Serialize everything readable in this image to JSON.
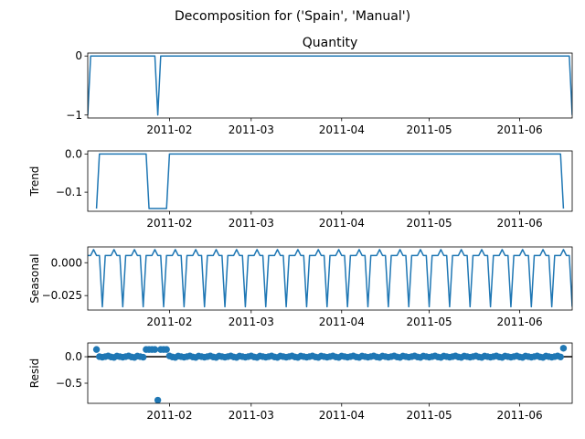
{
  "figure": {
    "suptitle": "Decomposition for ('Spain', 'Manual')"
  },
  "colors": {
    "line": "#1f77b4",
    "axis": "#000000",
    "background": "#ffffff",
    "zero_line": "#000000"
  },
  "chart_data": [
    {
      "type": "line",
      "panel": "observed",
      "title": "Quantity",
      "ylabel": "",
      "xlabel": "",
      "x_ticks": [
        "2011-02",
        "2011-03",
        "2011-04",
        "2011-05",
        "2011-06"
      ],
      "x_range": [
        "2011-01-04",
        "2011-06-19"
      ],
      "ylim": [
        -1.05,
        0.05
      ],
      "y_ticks": [
        0,
        -1
      ],
      "y_tick_labels": [
        "0",
        "−1"
      ],
      "x": [
        "2011-01-04",
        "2011-01-05",
        "2011-01-27",
        "2011-01-28",
        "2011-01-29",
        "2011-06-18",
        "2011-06-19"
      ],
      "values": [
        -1,
        0,
        0,
        -1,
        0,
        0,
        -1
      ]
    },
    {
      "type": "line",
      "panel": "trend",
      "title": "",
      "ylabel": "Trend",
      "xlabel": "",
      "x_ticks": [
        "2011-02",
        "2011-03",
        "2011-04",
        "2011-05",
        "2011-06"
      ],
      "x_range": [
        "2011-01-04",
        "2011-06-19"
      ],
      "ylim": [
        -0.15,
        0.008
      ],
      "y_ticks": [
        0.0,
        -0.1
      ],
      "y_tick_labels": [
        "0.0",
        "−0.1"
      ],
      "x": [
        "2011-01-07",
        "2011-01-08",
        "2011-01-24",
        "2011-01-25",
        "2011-01-31",
        "2011-02-01",
        "2011-06-15",
        "2011-06-16"
      ],
      "values": [
        -0.1429,
        0,
        0,
        -0.1429,
        -0.1429,
        0,
        0,
        -0.1429
      ]
    },
    {
      "type": "line",
      "panel": "seasonal",
      "title": "",
      "ylabel": "Seasonal",
      "xlabel": "",
      "x_ticks": [
        "2011-02",
        "2011-03",
        "2011-04",
        "2011-05",
        "2011-06"
      ],
      "x_range": [
        "2011-01-04",
        "2011-06-19"
      ],
      "ylim": [
        -0.036,
        0.012
      ],
      "y_ticks": [
        0.0,
        -0.025
      ],
      "y_tick_labels": [
        "0.000",
        "−0.025"
      ],
      "period": 7,
      "weekly_pattern": [
        0.0055,
        0.0055,
        0.01,
        0.0055,
        0.0055,
        -0.0335,
        0.0055
      ],
      "pattern_start": "2011-01-04"
    },
    {
      "type": "scatter",
      "panel": "resid",
      "title": "",
      "ylabel": "Resid",
      "xlabel": "",
      "x_ticks": [
        "2011-02",
        "2011-03",
        "2011-04",
        "2011-05",
        "2011-06"
      ],
      "x_range": [
        "2011-01-04",
        "2011-06-19"
      ],
      "ylim": [
        -0.88,
        0.26
      ],
      "y_ticks": [
        0.0,
        -0.5
      ],
      "y_tick_labels": [
        "0.0",
        "−0.5"
      ],
      "zero_line": true,
      "resid_start": "2011-01-07",
      "resid_end": "2011-06-16",
      "weekly_pattern": [
        0.012,
        0.002,
        -0.009,
        0.002,
        0.015,
        -0.004,
        -0.013
      ],
      "outliers": [
        {
          "x": "2011-01-07",
          "y": 0.137
        },
        {
          "x": "2011-01-24",
          "y": 0.137
        },
        {
          "x": "2011-01-25",
          "y": 0.137
        },
        {
          "x": "2011-01-26",
          "y": 0.137
        },
        {
          "x": "2011-01-27",
          "y": 0.137
        },
        {
          "x": "2011-01-28",
          "y": -0.82
        },
        {
          "x": "2011-01-29",
          "y": 0.137
        },
        {
          "x": "2011-01-30",
          "y": 0.137
        },
        {
          "x": "2011-01-31",
          "y": 0.137
        },
        {
          "x": "2011-06-16",
          "y": 0.16
        }
      ]
    }
  ]
}
